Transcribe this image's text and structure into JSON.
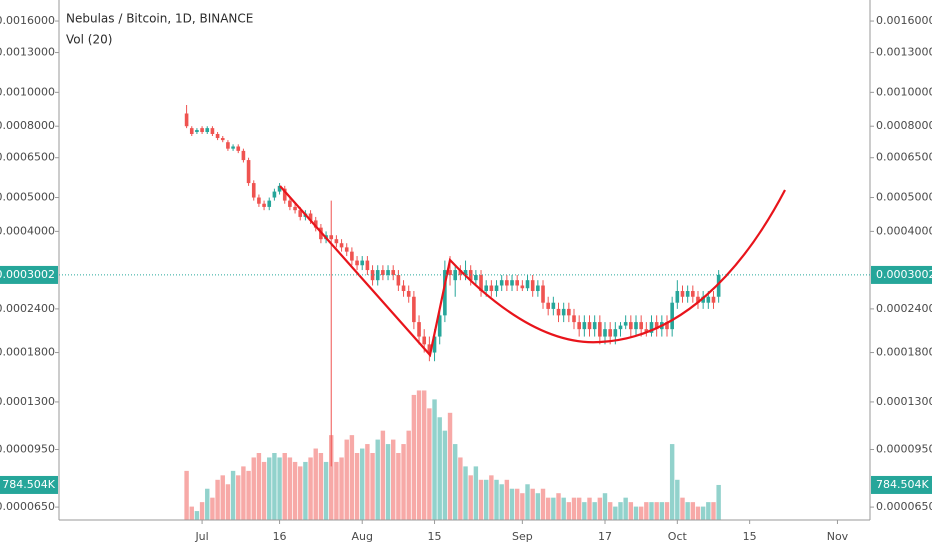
{
  "chart_data": {
    "type": "candlestick",
    "title": "Nebulas / Bitcoin, 1D, BINANCE",
    "subtitle": "Vol (20)",
    "log": true,
    "ylim": [
      5.97e-05,
      0.001838
    ],
    "yticks": [
      {
        "value": 0.0016,
        "label": "0.0016000"
      },
      {
        "value": 0.0013,
        "label": "0.0013000"
      },
      {
        "value": 0.001,
        "label": "0.0010000"
      },
      {
        "value": 0.0008,
        "label": "0.0008000"
      },
      {
        "value": 0.00065,
        "label": "0.0006500"
      },
      {
        "value": 0.0005,
        "label": "0.0005000"
      },
      {
        "value": 0.0004,
        "label": "0.0004000"
      },
      {
        "value": 0.00024,
        "label": "0.0002400"
      },
      {
        "value": 0.00018,
        "label": "0.0001800"
      },
      {
        "value": 0.00013,
        "label": "0.0001300"
      },
      {
        "value": 9.5e-05,
        "label": "0.0000950"
      },
      {
        "value": 6.5e-05,
        "label": "0.0000650"
      }
    ],
    "xlim": [
      -24.7,
      132.3
    ],
    "xticks": [
      {
        "value": 3,
        "label": "Jul"
      },
      {
        "value": 18,
        "label": "16"
      },
      {
        "value": 34,
        "label": "Aug"
      },
      {
        "value": 48,
        "label": "15"
      },
      {
        "value": 65,
        "label": "Sep"
      },
      {
        "value": 81,
        "label": "17"
      },
      {
        "value": 95,
        "label": "Oct"
      },
      {
        "value": 109,
        "label": "15"
      },
      {
        "value": 126,
        "label": "Nov"
      }
    ],
    "up_color": "#26a69a",
    "down_color": "#ef5350",
    "last_price": 0.0003002,
    "vlim": [
      0,
      3000000
    ],
    "last_volume_label": "784.504K",
    "ohlc": [
      [
        0.00087,
        0.00092,
        0.00079,
        0.0008
      ],
      [
        0.00079,
        0.0008,
        0.00075,
        0.00076
      ],
      [
        0.00077,
        0.00079,
        0.00076,
        0.00078
      ],
      [
        0.00079,
        0.0008,
        0.00076,
        0.00077
      ],
      [
        0.00077,
        0.0008,
        0.00076,
        0.00079
      ],
      [
        0.00079,
        0.0008,
        0.00075,
        0.00076
      ],
      [
        0.00076,
        0.00077,
        0.00073,
        0.00074
      ],
      [
        0.00074,
        0.00075,
        0.00072,
        0.00073
      ],
      [
        0.00072,
        0.00073,
        0.00068,
        0.00069
      ],
      [
        0.00069,
        0.00071,
        0.00068,
        0.0007
      ],
      [
        0.0007,
        0.00071,
        0.00067,
        0.00068
      ],
      [
        0.00068,
        0.00069,
        0.00063,
        0.00064
      ],
      [
        0.00064,
        0.00065,
        0.00054,
        0.00055
      ],
      [
        0.00055,
        0.00056,
        0.00049,
        0.0005
      ],
      [
        0.0005,
        0.00051,
        0.00047,
        0.00048
      ],
      [
        0.00048,
        0.00049,
        0.00046,
        0.00047
      ],
      [
        0.00047,
        0.0005,
        0.00046,
        0.00049
      ],
      [
        0.0005,
        0.00053,
        0.00049,
        0.00052
      ],
      [
        0.00052,
        0.00055,
        0.00051,
        0.00054
      ],
      [
        0.00053,
        0.00054,
        0.00048,
        0.00049
      ],
      [
        0.00049,
        0.0005,
        0.00046,
        0.00047
      ],
      [
        0.00047,
        0.00048,
        0.00045,
        0.00046
      ],
      [
        0.00046,
        0.00047,
        0.00043,
        0.00044
      ],
      [
        0.00044,
        0.00046,
        0.00043,
        0.00045
      ],
      [
        0.00045,
        0.00046,
        0.00042,
        0.00043
      ],
      [
        0.00043,
        0.00044,
        0.0004,
        0.00041
      ],
      [
        0.00041,
        0.00042,
        0.00037,
        0.00038
      ],
      [
        0.00038,
        0.0004,
        0.00037,
        0.00039
      ],
      [
        0.00039,
        0.00049,
        8.5e-05,
        0.00038
      ],
      [
        0.00038,
        0.00039,
        0.00036,
        0.00037
      ],
      [
        0.00037,
        0.00038,
        0.00035,
        0.00036
      ],
      [
        0.00036,
        0.00037,
        0.00034,
        0.00035
      ],
      [
        0.00035,
        0.00036,
        0.00032,
        0.00033
      ],
      [
        0.00033,
        0.00034,
        0.00031,
        0.00032
      ],
      [
        0.00032,
        0.00034,
        0.00031,
        0.00033
      ],
      [
        0.00033,
        0.00034,
        0.0003,
        0.00031
      ],
      [
        0.00031,
        0.00032,
        0.00028,
        0.00029
      ],
      [
        0.00029,
        0.00032,
        0.00028,
        0.00031
      ],
      [
        0.00031,
        0.00032,
        0.00029,
        0.0003
      ],
      [
        0.0003,
        0.00032,
        0.00029,
        0.00031
      ],
      [
        0.00031,
        0.00032,
        0.00029,
        0.0003
      ],
      [
        0.0003,
        0.00031,
        0.00027,
        0.00028
      ],
      [
        0.00028,
        0.00029,
        0.00026,
        0.00027
      ],
      [
        0.00027,
        0.00028,
        0.00025,
        0.00026
      ],
      [
        0.00026,
        0.00027,
        0.00021,
        0.00022
      ],
      [
        0.00022,
        0.00023,
        0.00019,
        0.0002
      ],
      [
        0.0002,
        0.00021,
        0.00018,
        0.00019
      ],
      [
        0.00019,
        0.0002,
        0.00017,
        0.00018
      ],
      [
        0.00018,
        0.00021,
        0.00017,
        0.0002
      ],
      [
        0.0002,
        0.00024,
        0.00019,
        0.00023
      ],
      [
        0.00023,
        0.00033,
        0.00022,
        0.00031
      ],
      [
        0.00031,
        0.00034,
        0.00028,
        0.0003
      ],
      [
        0.00029,
        0.00032,
        0.00026,
        0.00031
      ],
      [
        0.00031,
        0.00032,
        0.00029,
        0.0003
      ],
      [
        0.0003,
        0.00033,
        0.00029,
        0.00031
      ],
      [
        0.00031,
        0.00032,
        0.00028,
        0.00029
      ],
      [
        0.00029,
        0.00031,
        0.00028,
        0.0003
      ],
      [
        0.0003,
        0.00031,
        0.00026,
        0.00027
      ],
      [
        0.00027,
        0.00029,
        0.00026,
        0.00028
      ],
      [
        0.00028,
        0.00029,
        0.00026,
        0.00027
      ],
      [
        0.00027,
        0.00029,
        0.00026,
        0.00028
      ],
      [
        0.00028,
        0.0003,
        0.00027,
        0.00029
      ],
      [
        0.00029,
        0.0003,
        0.00027,
        0.00028
      ],
      [
        0.00028,
        0.0003,
        0.00027,
        0.00029
      ],
      [
        0.00029,
        0.0003,
        0.00027,
        0.00028
      ],
      [
        0.00028,
        0.00029,
        0.00027,
        0.000275
      ],
      [
        0.000275,
        0.0003,
        0.00027,
        0.00029
      ],
      [
        0.00029,
        0.0003,
        0.00026,
        0.00027
      ],
      [
        0.00027,
        0.00029,
        0.00026,
        0.00028
      ],
      [
        0.00028,
        0.00029,
        0.00024,
        0.00025
      ],
      [
        0.00025,
        0.00026,
        0.00023,
        0.00024
      ],
      [
        0.00024,
        0.00026,
        0.00023,
        0.00025
      ],
      [
        0.00024,
        0.00025,
        0.00022,
        0.00023
      ],
      [
        0.00023,
        0.00025,
        0.00022,
        0.00024
      ],
      [
        0.00024,
        0.00025,
        0.00022,
        0.00023
      ],
      [
        0.00023,
        0.00024,
        0.00021,
        0.00022
      ],
      [
        0.00022,
        0.00023,
        0.0002,
        0.00021
      ],
      [
        0.00021,
        0.00023,
        0.0002,
        0.00022
      ],
      [
        0.00022,
        0.00023,
        0.0002,
        0.00021
      ],
      [
        0.00021,
        0.00023,
        0.0002,
        0.00022
      ],
      [
        0.00022,
        0.00023,
        0.00019,
        0.0002
      ],
      [
        0.0002,
        0.00022,
        0.00019,
        0.00021
      ],
      [
        0.00021,
        0.00022,
        0.00019,
        0.0002
      ],
      [
        0.0002,
        0.00022,
        0.00019,
        0.00021
      ],
      [
        0.00021,
        0.00022,
        0.0002,
        0.000215
      ],
      [
        0.000215,
        0.00023,
        0.00021,
        0.00022
      ],
      [
        0.00022,
        0.00023,
        0.0002,
        0.00021
      ],
      [
        0.00021,
        0.00023,
        0.0002,
        0.00022
      ],
      [
        0.00022,
        0.00023,
        0.0002,
        0.00021
      ],
      [
        0.00021,
        0.00022,
        0.0002,
        0.000205
      ],
      [
        0.000205,
        0.00023,
        0.0002,
        0.00022
      ],
      [
        0.00022,
        0.00023,
        0.0002,
        0.00021
      ],
      [
        0.00021,
        0.00023,
        0.0002,
        0.00022
      ],
      [
        0.00022,
        0.00023,
        0.0002,
        0.00021
      ],
      [
        0.00021,
        0.00026,
        0.0002,
        0.00025
      ],
      [
        0.00025,
        0.00029,
        0.00024,
        0.00027
      ],
      [
        0.00027,
        0.00028,
        0.00025,
        0.00026
      ],
      [
        0.00026,
        0.00028,
        0.00025,
        0.00027
      ],
      [
        0.00027,
        0.00028,
        0.00025,
        0.00026
      ],
      [
        0.00026,
        0.00027,
        0.00024,
        0.00025
      ],
      [
        0.00025,
        0.00027,
        0.00024,
        0.00026
      ],
      [
        0.00025,
        0.00027,
        0.00024,
        0.00026
      ],
      [
        0.00026,
        0.00027,
        0.00024,
        0.00025
      ],
      [
        0.00026,
        0.00031,
        0.00025,
        0.0003002
      ]
    ],
    "volumes": [
      1100000,
      300000,
      200000,
      400000,
      700000,
      500000,
      900000,
      1000000,
      800000,
      1100000,
      1000000,
      1200000,
      1100000,
      1400000,
      1500000,
      1300000,
      1400000,
      1500000,
      1400000,
      1500000,
      1400000,
      1300000,
      1200000,
      1300000,
      1400000,
      1600000,
      1500000,
      1300000,
      1900000,
      1300000,
      1400000,
      1800000,
      1900000,
      1500000,
      1600000,
      1700000,
      1500000,
      1800000,
      2000000,
      1700000,
      1800000,
      1500000,
      1700000,
      2000000,
      2800000,
      2900000,
      2900000,
      2500000,
      2700000,
      2300000,
      2000000,
      2400000,
      1700000,
      1400000,
      1200000,
      1000000,
      1200000,
      900000,
      900000,
      1000000,
      900000,
      800000,
      900000,
      700000,
      700000,
      600000,
      800000,
      700000,
      600000,
      700000,
      500000,
      500000,
      600000,
      500000,
      400000,
      500000,
      500000,
      400000,
      500000,
      400000,
      500000,
      600000,
      400000,
      300000,
      400000,
      500000,
      400000,
      300000,
      300000,
      400000,
      400000,
      400000,
      400000,
      400000,
      1700000,
      900000,
      500000,
      400000,
      400000,
      300000,
      300000,
      400000,
      400000,
      784504
    ]
  }
}
